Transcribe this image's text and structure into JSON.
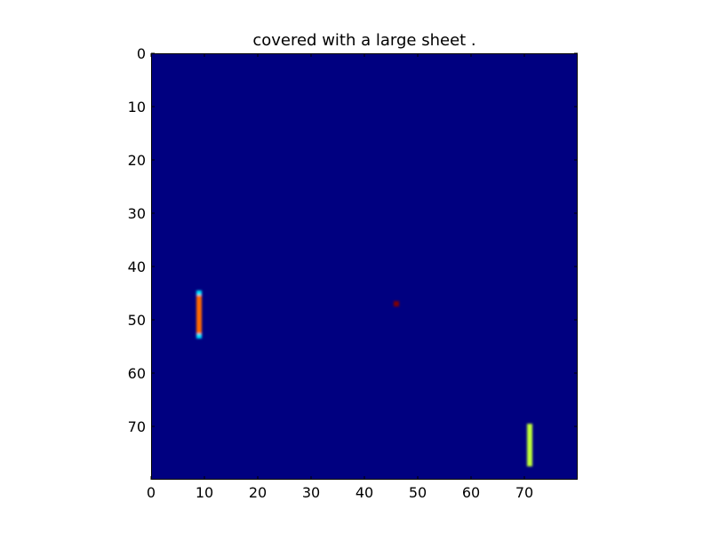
{
  "title": "covered with a large sheet .",
  "grid": {
    "rows": 80,
    "cols": 80,
    "background_color": "#000080",
    "background_value": 0.0,
    "colormap": "jet",
    "interpolation": "smooth"
  },
  "axes": {
    "x_ticks": [
      0,
      10,
      20,
      30,
      40,
      50,
      60,
      70
    ],
    "y_ticks": [
      0,
      10,
      20,
      30,
      40,
      50,
      60,
      70
    ],
    "x_range": [
      0,
      80
    ],
    "y_range": [
      0,
      80
    ],
    "y_inverted": true
  },
  "objects": [
    {
      "name": "left-vertical-paddle",
      "x": 9,
      "y_start": 45,
      "y_end": 53,
      "width": 1,
      "body_value": 0.8,
      "body_color": "#ff6a00",
      "end_cap_color": "#00e5ff"
    },
    {
      "name": "center-ball",
      "x": 46,
      "y": 47,
      "size": 1,
      "value": 1.0,
      "color": "#800000"
    },
    {
      "name": "right-vertical-paddle",
      "x": 71,
      "y_start": 70,
      "y_end": 77,
      "width": 1,
      "body_value": 0.65,
      "body_color": "#c0ff3a"
    }
  ]
}
